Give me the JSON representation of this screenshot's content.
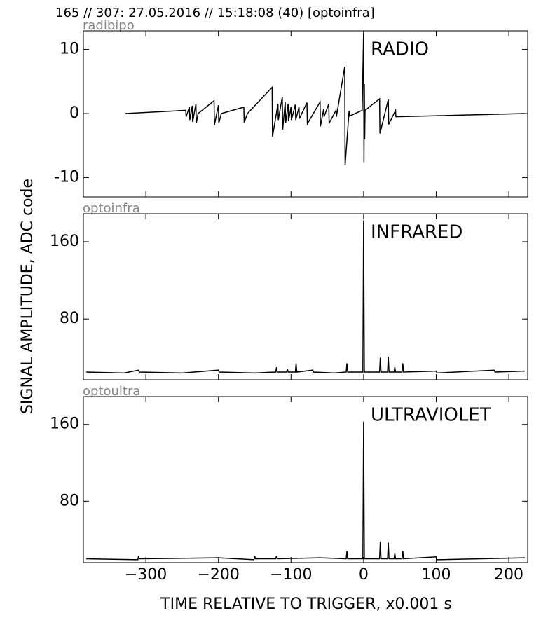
{
  "chart_data": [
    {
      "type": "line",
      "title": "165 // 307:   27.05.2016 // 15:18:08 (40)  [optoinfra]",
      "ylabel": "SIGNAL AMPLITUDE,  ADC code",
      "panel_label": "radibipo",
      "annotation": "RADIO",
      "color": "#000000",
      "xlim": [
        -386,
        226
      ],
      "ylim": [
        -13,
        12.9
      ],
      "yticks": [
        -10,
        0,
        10
      ],
      "x": [
        -328,
        -245,
        -244.5,
        -240,
        -239.5,
        -236,
        -235.5,
        -231,
        -230.5,
        -228,
        -206,
        -205.5,
        -200,
        -199.5,
        -196,
        -165,
        -164.5,
        -160,
        -126,
        -125.5,
        -118,
        -117.5,
        -112,
        -111.5,
        -108,
        -107.5,
        -104,
        -103.5,
        -100,
        -99.5,
        -94,
        -93.5,
        -89,
        -88.5,
        -78,
        -77.5,
        -60,
        -59.5,
        -55,
        -54.5,
        -48,
        -47.5,
        -38,
        -37.5,
        -26,
        -25.5,
        -20,
        -19.5,
        -2,
        0,
        0.5,
        1,
        1.5,
        2,
        22,
        22.5,
        34,
        34.5,
        44,
        44.5,
        222
      ],
      "values": [
        0,
        0.5,
        -0.5,
        1.0,
        -1.0,
        1.2,
        -1.3,
        1.5,
        -1.5,
        0,
        2.0,
        -1.8,
        1.3,
        -1.5,
        0,
        1.0,
        -1.4,
        0,
        4.1,
        -3.6,
        1.5,
        -1.0,
        2.6,
        -2.5,
        1.8,
        -1.5,
        1.5,
        -1.2,
        1.0,
        -1.0,
        1.4,
        -1.0,
        1.0,
        -0.8,
        1.7,
        -1.6,
        1.8,
        -2.0,
        0.7,
        -0.5,
        1.5,
        -1.5,
        0.5,
        -0.5,
        7.3,
        -8.1,
        0.4,
        -0.4,
        0.5,
        12.6,
        -7.6,
        4.6,
        -4.0,
        0.5,
        2.3,
        -3.1,
        2.2,
        -1.7,
        0.5,
        -0.5,
        0
      ]
    },
    {
      "type": "line",
      "panel_label": "optoinfra",
      "annotation": "INFRARED",
      "color": "#000000",
      "xlim": [
        -386,
        226
      ],
      "ylim": [
        17,
        189
      ],
      "yticks": [
        80,
        160
      ],
      "x": [
        -382,
        -330,
        -310,
        -309,
        -250,
        -200,
        -199,
        -150,
        -121,
        -120,
        -119,
        -106,
        -105,
        -104,
        -94,
        -93,
        -92,
        -70,
        -69,
        -40,
        -24,
        -23,
        -22,
        -1,
        0,
        1,
        22,
        23,
        24,
        33,
        34,
        35,
        42,
        43,
        44,
        53,
        54,
        55,
        100,
        101,
        180,
        181,
        222
      ],
      "values": [
        25,
        24,
        27,
        25,
        24,
        27,
        25,
        24,
        25,
        30,
        25,
        25,
        28,
        25,
        25,
        34,
        25,
        27,
        25,
        24,
        25,
        34,
        25,
        25,
        182,
        25,
        25,
        40,
        25,
        25,
        41,
        25,
        25,
        30,
        25,
        25,
        34,
        25,
        26,
        24,
        27,
        25,
        26
      ]
    },
    {
      "type": "line",
      "panel_label": "optoultra",
      "annotation": "ULTRAVIOLET",
      "color": "#000000",
      "xlabel": "TIME RELATIVE TO TRIGGER,   x0.001 s",
      "xlim": [
        -386,
        226
      ],
      "ylim": [
        16,
        189
      ],
      "yticks": [
        80,
        160
      ],
      "xticks": [
        {
          "value": -300,
          "label": "−300"
        },
        {
          "value": -200,
          "label": "−200"
        },
        {
          "value": -100,
          "label": "−100"
        },
        0,
        100,
        200
      ],
      "x": [
        -382,
        -311,
        -310,
        -309,
        -200,
        -151,
        -150,
        -149,
        -121,
        -120,
        -119,
        -60,
        -24,
        -23,
        -22,
        -1,
        0,
        1,
        22,
        23,
        24,
        33,
        34,
        35,
        42,
        43,
        44,
        53,
        54,
        55,
        100,
        101,
        222
      ],
      "values": [
        20,
        19,
        23,
        20,
        21,
        19,
        23,
        20,
        20,
        23,
        20,
        21,
        20,
        28,
        20,
        20,
        163,
        20,
        20,
        38,
        20,
        20,
        37,
        20,
        20,
        26,
        20,
        20,
        28,
        20,
        22,
        19,
        21
      ]
    }
  ]
}
